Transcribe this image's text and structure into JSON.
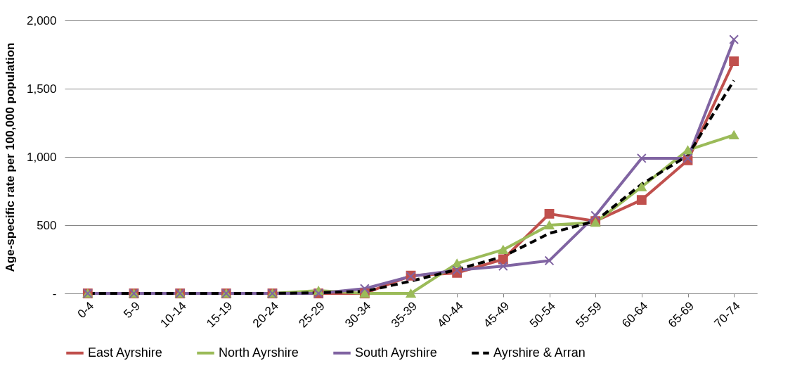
{
  "chart_data": {
    "type": "line",
    "ylabel": "Age-specific rate per 100,000 population",
    "categories": [
      "0-4",
      "5-9",
      "10-14",
      "15-19",
      "20-24",
      "25-29",
      "30-34",
      "35-39",
      "40-44",
      "45-49",
      "50-54",
      "55-59",
      "60-64",
      "65-69",
      "70-74"
    ],
    "series": [
      {
        "name": "East Ayrshire",
        "color": "#c0504d",
        "marker": "square",
        "line_style": "solid",
        "values": [
          0,
          0,
          0,
          0,
          0,
          0,
          0,
          130,
          150,
          250,
          583,
          530,
          685,
          975,
          1700
        ]
      },
      {
        "name": "North Ayrshire",
        "color": "#9bbb59",
        "marker": "triangle",
        "line_style": "solid",
        "values": [
          0,
          0,
          0,
          0,
          0,
          20,
          0,
          0,
          220,
          320,
          500,
          520,
          780,
          1050,
          1160
        ]
      },
      {
        "name": "South Ayrshire",
        "color": "#8064a2",
        "marker": "cross",
        "line_style": "solid",
        "values": [
          0,
          0,
          0,
          0,
          0,
          0,
          35,
          125,
          170,
          200,
          240,
          570,
          990,
          990,
          1860
        ]
      },
      {
        "name": "Ayrshire & Arran",
        "color": "#000000",
        "marker": "none",
        "line_style": "dashed",
        "values": [
          0,
          0,
          0,
          0,
          0,
          5,
          15,
          90,
          175,
          270,
          440,
          530,
          800,
          1010,
          1560
        ]
      }
    ],
    "ylim": [
      0,
      2000
    ],
    "yticks": [
      {
        "value": 0,
        "label": "-"
      },
      500,
      {
        "value": 1000,
        "label": "1,000"
      },
      {
        "value": 1500,
        "label": "1,500"
      },
      {
        "value": 2000,
        "label": "2,000"
      }
    ],
    "grid": "y",
    "legend": "bottom"
  }
}
